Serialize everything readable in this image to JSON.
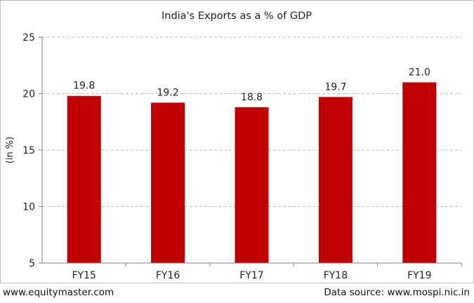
{
  "chart_data": {
    "type": "bar",
    "title": "India's Exports as a % of GDP",
    "ylabel": "(in %)",
    "xlabel": "",
    "categories": [
      "FY15",
      "FY16",
      "FY17",
      "FY18",
      "FY19"
    ],
    "values": [
      19.8,
      19.2,
      18.8,
      19.7,
      21.0
    ],
    "value_labels": [
      "19.8",
      "19.2",
      "18.8",
      "19.7",
      "21.0"
    ],
    "ylim": [
      5,
      25
    ],
    "yticks": [
      5,
      10,
      15,
      20,
      25
    ],
    "grid": true,
    "bar_color": "#c00000"
  },
  "footer": {
    "left": "www.equitymaster.com",
    "right": "Data source: www.mospi.nic.in"
  }
}
